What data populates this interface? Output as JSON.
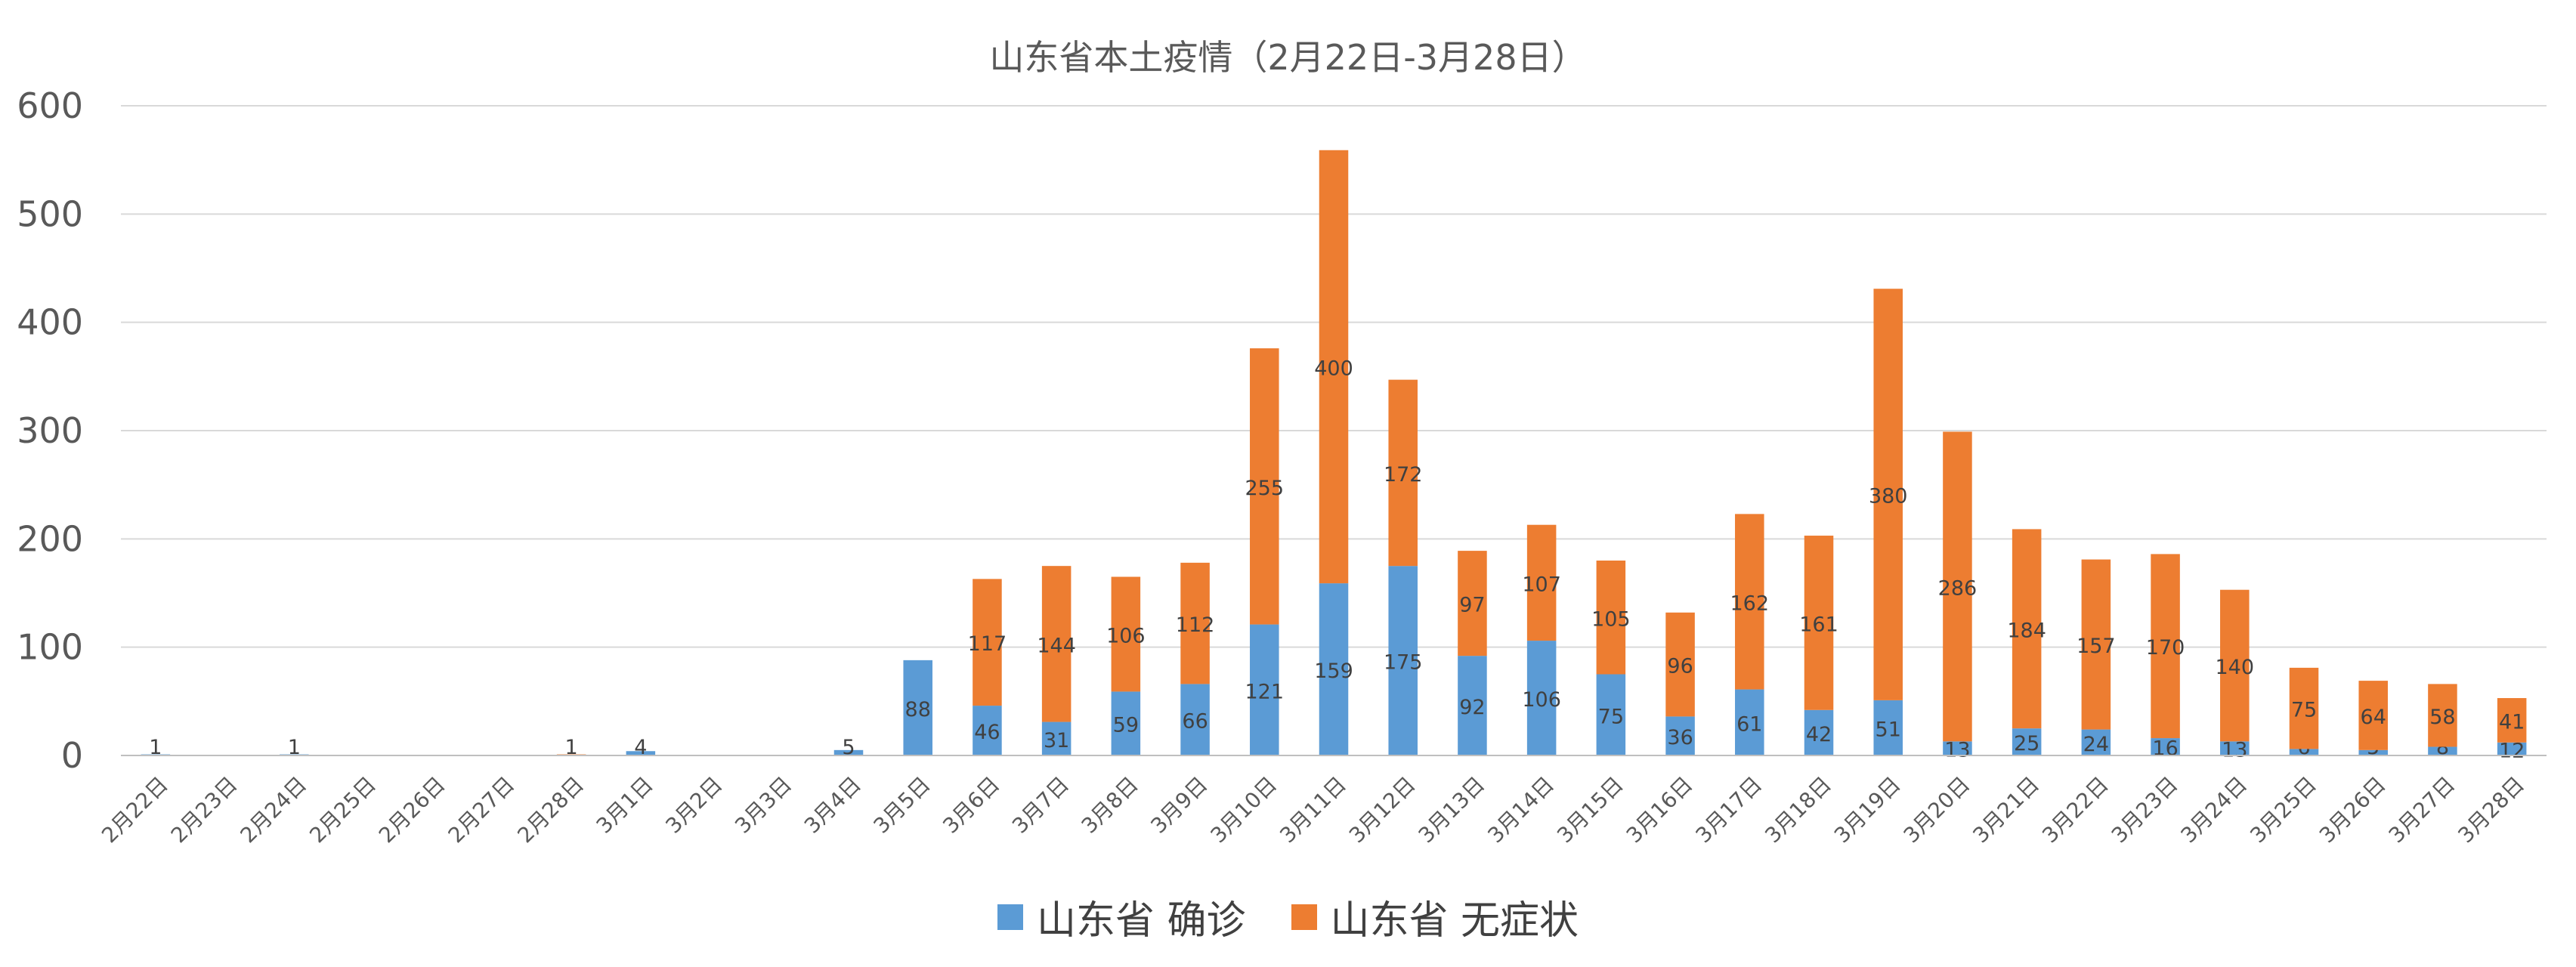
{
  "chart_data": {
    "type": "bar",
    "stacked": true,
    "title": "山东省本土疫情（2月22日-3月28日）",
    "xlabel": "",
    "ylabel": "",
    "ylim": [
      0,
      600
    ],
    "yticks": [
      0,
      100,
      200,
      300,
      400,
      500,
      600
    ],
    "grid": true,
    "legend_position": "bottom",
    "categories": [
      "2月22日",
      "2月23日",
      "2月24日",
      "2月25日",
      "2月26日",
      "2月27日",
      "2月28日",
      "3月1日",
      "3月2日",
      "3月3日",
      "3月4日",
      "3月5日",
      "3月6日",
      "3月7日",
      "3月8日",
      "3月9日",
      "3月10日",
      "3月11日",
      "3月12日",
      "3月13日",
      "3月14日",
      "3月15日",
      "3月16日",
      "3月17日",
      "3月18日",
      "3月19日",
      "3月20日",
      "3月21日",
      "3月22日",
      "3月23日",
      "3月24日",
      "3月25日",
      "3月26日",
      "3月27日",
      "3月28日"
    ],
    "series": [
      {
        "name": "山东省 确诊",
        "color": "#5B9BD5",
        "values": [
          1,
          null,
          1,
          null,
          null,
          null,
          null,
          4,
          null,
          null,
          5,
          88,
          46,
          31,
          59,
          66,
          121,
          159,
          175,
          92,
          106,
          75,
          36,
          61,
          42,
          51,
          13,
          25,
          24,
          16,
          13,
          6,
          5,
          8,
          12
        ]
      },
      {
        "name": "山东省 无症状",
        "color": "#ED7D31",
        "values": [
          null,
          null,
          null,
          null,
          null,
          null,
          1,
          null,
          null,
          null,
          null,
          null,
          117,
          144,
          106,
          112,
          255,
          400,
          172,
          97,
          107,
          105,
          96,
          162,
          161,
          380,
          286,
          184,
          157,
          170,
          140,
          75,
          64,
          58,
          41
        ]
      }
    ]
  }
}
